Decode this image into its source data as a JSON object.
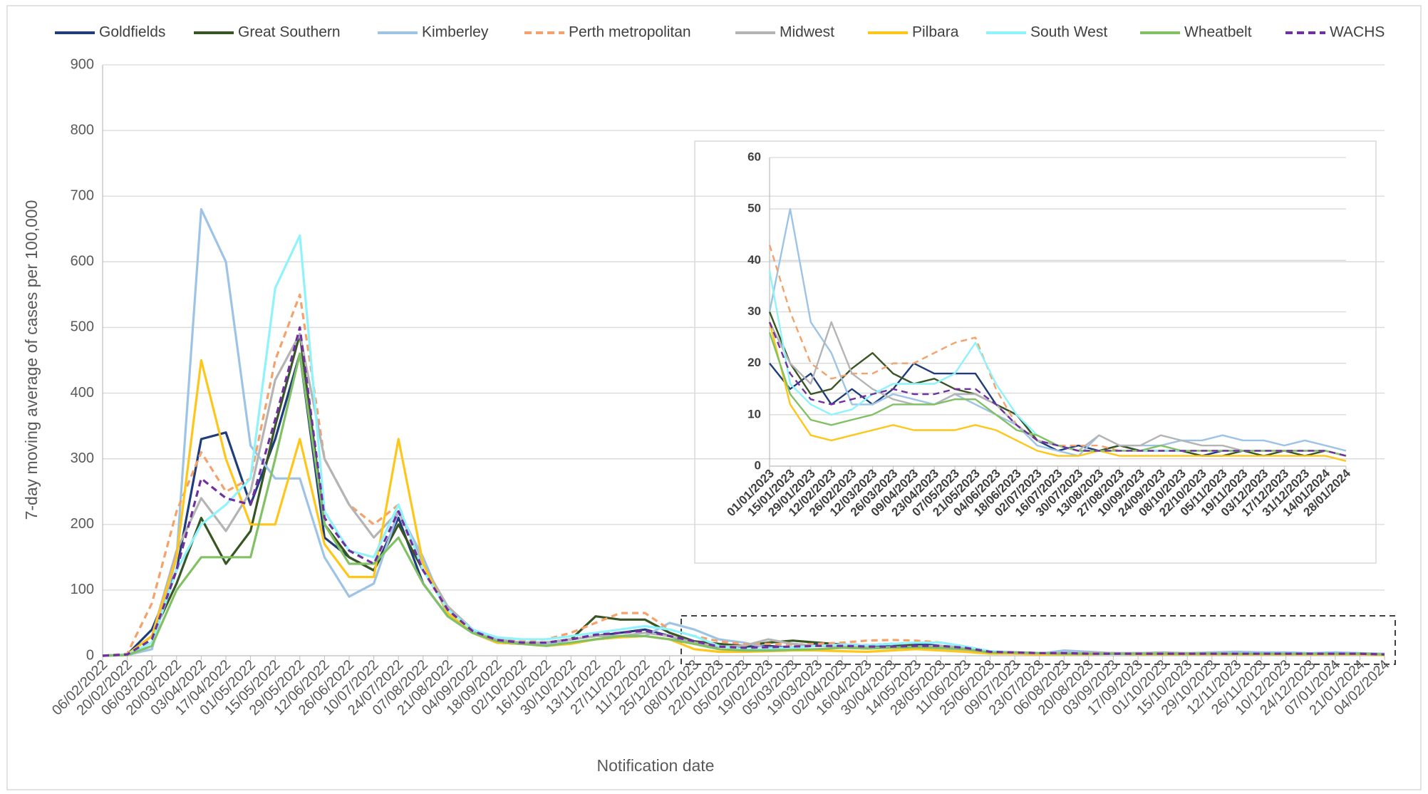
{
  "chart_data": [
    {
      "type": "line",
      "y_label": "7-day moving average of cases per 100,000",
      "x_label": "Notification date",
      "categories": [
        "06/02/2022",
        "20/02/2022",
        "06/03/2022",
        "20/03/2022",
        "03/04/2022",
        "17/04/2022",
        "01/05/2022",
        "15/05/2022",
        "29/05/2022",
        "12/06/2022",
        "26/06/2022",
        "10/07/2022",
        "24/07/2022",
        "07/08/2022",
        "21/08/2022",
        "04/09/2022",
        "18/09/2022",
        "02/10/2022",
        "16/10/2022",
        "30/10/2022",
        "13/11/2022",
        "27/11/2022",
        "11/12/2022",
        "25/12/2022",
        "08/01/2023",
        "22/01/2023",
        "05/02/2023",
        "19/02/2023",
        "05/03/2023",
        "19/03/2023",
        "02/04/2023",
        "16/04/2023",
        "30/04/2023",
        "14/05/2023",
        "28/05/2023",
        "11/06/2023",
        "25/06/2023",
        "09/07/2023",
        "23/07/2023",
        "06/08/2023",
        "20/08/2023",
        "03/09/2023",
        "17/09/2023",
        "01/10/2023",
        "15/10/2023",
        "29/10/2023",
        "12/11/2023",
        "26/11/2023",
        "10/12/2023",
        "24/12/2023",
        "07/01/2024",
        "21/01/2024",
        "04/02/2024"
      ],
      "ylim": [
        0,
        900
      ],
      "yticks": [
        0,
        100,
        200,
        300,
        400,
        500,
        600,
        700,
        800,
        900
      ],
      "grid": true,
      "legend": "top",
      "series": [
        {
          "name": "Goldfields",
          "color": "#1f3d7a",
          "values": [
            0,
            2,
            40,
            130,
            330,
            340,
            230,
            330,
            460,
            180,
            150,
            130,
            210,
            110,
            60,
            35,
            20,
            18,
            20,
            25,
            30,
            35,
            40,
            30,
            18,
            14,
            14,
            15,
            12,
            18,
            17,
            16,
            14,
            18,
            15,
            10,
            5,
            4,
            3,
            4,
            3,
            4,
            3,
            3,
            3,
            3,
            4,
            3,
            3,
            3,
            3,
            3,
            2
          ]
        },
        {
          "name": "Great Southern",
          "color": "#375623",
          "values": [
            0,
            2,
            30,
            110,
            210,
            140,
            190,
            350,
            490,
            200,
            150,
            130,
            200,
            130,
            75,
            40,
            22,
            18,
            20,
            25,
            60,
            55,
            55,
            35,
            22,
            18,
            15,
            20,
            23,
            20,
            17,
            16,
            18,
            15,
            13,
            12,
            6,
            5,
            4,
            4,
            3,
            3,
            4,
            3,
            3,
            3,
            3,
            3,
            3,
            3,
            3,
            3,
            2
          ]
        },
        {
          "name": "Kimberley",
          "color": "#9dc3e6",
          "values": [
            0,
            1,
            10,
            150,
            680,
            600,
            320,
            270,
            270,
            150,
            90,
            110,
            220,
            150,
            60,
            35,
            25,
            20,
            18,
            20,
            25,
            28,
            30,
            50,
            40,
            25,
            20,
            12,
            13,
            15,
            14,
            12,
            13,
            12,
            10,
            8,
            4,
            3,
            3,
            8,
            6,
            4,
            4,
            4,
            4,
            5,
            6,
            5,
            5,
            4,
            5,
            4,
            3
          ]
        },
        {
          "name": "Perth metropolitan",
          "color": "#f4a16b",
          "dashed": true,
          "values": [
            0,
            3,
            80,
            220,
            310,
            250,
            270,
            450,
            550,
            300,
            230,
            200,
            230,
            130,
            70,
            40,
            25,
            22,
            25,
            35,
            50,
            65,
            65,
            40,
            30,
            22,
            18,
            18,
            17,
            18,
            20,
            23,
            24,
            23,
            20,
            14,
            6,
            5,
            4,
            4,
            3,
            3,
            3,
            3,
            3,
            3,
            3,
            3,
            3,
            3,
            3,
            3,
            2
          ]
        },
        {
          "name": "Midwest",
          "color": "#b4b4b4",
          "values": [
            0,
            2,
            30,
            160,
            240,
            190,
            250,
            420,
            490,
            300,
            230,
            180,
            220,
            140,
            75,
            40,
            25,
            20,
            20,
            25,
            30,
            30,
            35,
            30,
            20,
            14,
            15,
            25,
            18,
            15,
            14,
            12,
            12,
            14,
            15,
            12,
            6,
            5,
            4,
            4,
            5,
            4,
            4,
            5,
            4,
            4,
            3,
            3,
            3,
            3,
            3,
            3,
            2
          ]
        },
        {
          "name": "Pilbara",
          "color": "#ffc61a",
          "values": [
            0,
            2,
            30,
            150,
            450,
            300,
            200,
            200,
            330,
            170,
            120,
            120,
            330,
            140,
            65,
            35,
            20,
            18,
            15,
            18,
            25,
            28,
            30,
            25,
            10,
            6,
            6,
            7,
            8,
            8,
            7,
            6,
            8,
            10,
            8,
            6,
            3,
            3,
            2,
            2,
            2,
            3,
            2,
            2,
            2,
            2,
            2,
            2,
            2,
            2,
            2,
            2,
            1
          ]
        },
        {
          "name": "South West",
          "color": "#8ef3fb",
          "values": [
            0,
            2,
            20,
            130,
            200,
            230,
            270,
            560,
            640,
            220,
            160,
            150,
            230,
            130,
            70,
            40,
            28,
            25,
            25,
            30,
            35,
            40,
            45,
            40,
            30,
            15,
            10,
            10,
            12,
            15,
            17,
            16,
            18,
            20,
            20,
            14,
            7,
            5,
            4,
            3,
            3,
            3,
            3,
            3,
            3,
            3,
            3,
            3,
            3,
            3,
            3,
            3,
            2
          ]
        },
        {
          "name": "Wheatbelt",
          "color": "#82c163",
          "values": [
            0,
            1,
            15,
            100,
            150,
            150,
            150,
            300,
            460,
            200,
            140,
            140,
            180,
            110,
            60,
            35,
            22,
            18,
            15,
            20,
            25,
            30,
            30,
            25,
            18,
            10,
            8,
            8,
            9,
            10,
            12,
            11,
            12,
            13,
            12,
            10,
            5,
            5,
            4,
            3,
            3,
            3,
            3,
            3,
            3,
            3,
            3,
            3,
            3,
            3,
            3,
            3,
            2
          ]
        },
        {
          "name": "WACHS",
          "color": "#7030a0",
          "dashed": true,
          "values": [
            0,
            2,
            25,
            130,
            270,
            240,
            230,
            360,
            500,
            210,
            160,
            140,
            220,
            130,
            70,
            38,
            24,
            20,
            20,
            25,
            32,
            35,
            38,
            30,
            22,
            14,
            12,
            13,
            14,
            15,
            15,
            14,
            14,
            15,
            15,
            12,
            6,
            5,
            4,
            4,
            3,
            3,
            3,
            3,
            3,
            3,
            3,
            3,
            3,
            3,
            3,
            3,
            2
          ]
        }
      ]
    },
    {
      "type": "line",
      "categories": [
        "01/01/2023",
        "15/01/2023",
        "29/01/2023",
        "12/02/2023",
        "26/02/2023",
        "12/03/2023",
        "26/03/2023",
        "09/04/2023",
        "23/04/2023",
        "07/05/2023",
        "21/05/2023",
        "04/06/2023",
        "18/06/2023",
        "02/07/2023",
        "16/07/2023",
        "30/07/2023",
        "13/08/2023",
        "27/08/2023",
        "10/09/2023",
        "24/09/2023",
        "08/10/2023",
        "22/10/2023",
        "05/11/2023",
        "19/11/2023",
        "03/12/2023",
        "17/12/2023",
        "31/12/2023",
        "14/01/2024",
        "28/01/2024"
      ],
      "ylim": [
        0,
        60
      ],
      "yticks": [
        0,
        10,
        20,
        30,
        40,
        50,
        60
      ],
      "grid": true,
      "series": [
        {
          "color": "#1f3d7a",
          "values": [
            20,
            15,
            18,
            12,
            15,
            12,
            15,
            20,
            18,
            18,
            18,
            12,
            10,
            5,
            3,
            4,
            3,
            4,
            3,
            3,
            3,
            2,
            3,
            3,
            3,
            3,
            3,
            3,
            2
          ]
        },
        {
          "color": "#375623",
          "values": [
            30,
            20,
            14,
            15,
            19,
            22,
            18,
            16,
            17,
            15,
            14,
            12,
            10,
            5,
            4,
            3,
            3,
            4,
            3,
            3,
            3,
            2,
            2,
            3,
            2,
            3,
            2,
            3,
            2
          ]
        },
        {
          "color": "#9dc3e6",
          "values": [
            30,
            50,
            28,
            22,
            12,
            12,
            14,
            13,
            12,
            14,
            12,
            10,
            8,
            4,
            3,
            2,
            6,
            4,
            4,
            4,
            5,
            5,
            6,
            5,
            5,
            4,
            5,
            4,
            3
          ]
        },
        {
          "color": "#f4a16b",
          "dashed": true,
          "values": [
            43,
            30,
            20,
            17,
            18,
            18,
            20,
            20,
            22,
            24,
            25,
            15,
            8,
            5,
            4,
            4,
            4,
            3,
            3,
            3,
            3,
            3,
            3,
            3,
            3,
            3,
            3,
            3,
            2
          ]
        },
        {
          "color": "#b4b4b4",
          "values": [
            28,
            20,
            16,
            28,
            18,
            15,
            13,
            12,
            12,
            14,
            14,
            12,
            8,
            5,
            4,
            3,
            6,
            4,
            4,
            6,
            5,
            4,
            4,
            3,
            3,
            3,
            3,
            3,
            2
          ]
        },
        {
          "color": "#ffc61a",
          "values": [
            28,
            12,
            6,
            5,
            6,
            7,
            8,
            7,
            7,
            7,
            8,
            7,
            5,
            3,
            2,
            2,
            3,
            2,
            2,
            2,
            2,
            2,
            2,
            2,
            2,
            2,
            2,
            2,
            1
          ]
        },
        {
          "color": "#8ef3fb",
          "values": [
            38,
            16,
            12,
            10,
            11,
            14,
            16,
            16,
            16,
            18,
            24,
            16,
            10,
            6,
            4,
            3,
            3,
            3,
            3,
            3,
            3,
            3,
            3,
            3,
            3,
            3,
            3,
            3,
            2
          ]
        },
        {
          "color": "#82c163",
          "values": [
            26,
            14,
            9,
            8,
            9,
            10,
            12,
            12,
            12,
            13,
            13,
            10,
            7,
            6,
            4,
            3,
            3,
            3,
            3,
            4,
            3,
            3,
            3,
            3,
            3,
            3,
            3,
            3,
            2
          ]
        },
        {
          "color": "#7030a0",
          "dashed": true,
          "values": [
            28,
            18,
            13,
            12,
            13,
            14,
            15,
            14,
            14,
            15,
            15,
            12,
            8,
            5,
            4,
            3,
            3,
            3,
            3,
            3,
            3,
            3,
            3,
            3,
            3,
            3,
            3,
            3,
            2
          ]
        }
      ]
    }
  ]
}
